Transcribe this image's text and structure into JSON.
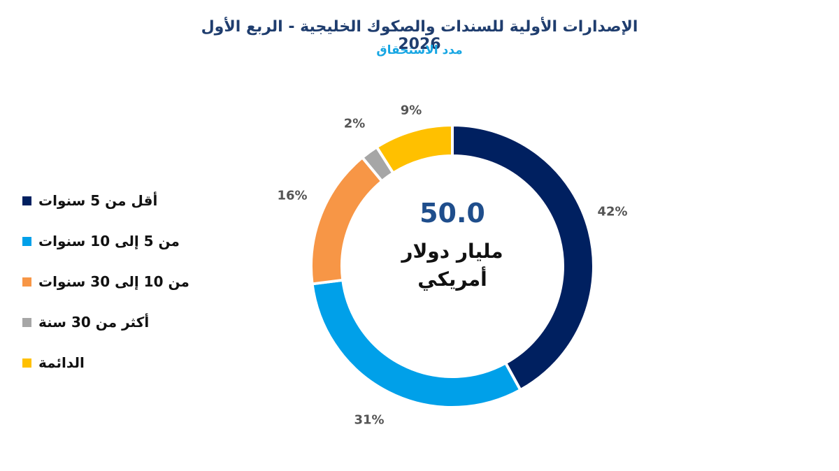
{
  "header": {
    "title": "الإصدارات الأولية للسندات والصكوك الخليجية -  الربع الأول 2026",
    "subtitle": "مدد الاستحقاق"
  },
  "center": {
    "value": "50.0",
    "unit_line1": "مليار دولار",
    "unit_line2": "أمريكي"
  },
  "colors": {
    "title": "#1f3d6e",
    "subtitle": "#17a6e3",
    "center_value": "#1f4e8c"
  },
  "chart_data": {
    "type": "pie",
    "variant": "donut",
    "title": "الإصدارات الأولية للسندات والصكوك الخليجية - الربع الأول 2026",
    "subtitle": "مدد الاستحقاق",
    "center_label": "50.0 مليار دولار أمريكي",
    "total": 50.0,
    "unit": "مليار دولار أمريكي",
    "legend_position": "left",
    "categories": [
      "أقل من 5 سنوات",
      "من 5 إلى 10 سنوات",
      "من 10 إلى 30 سنوات",
      "أكثر من 30 سنة",
      "الدائمة"
    ],
    "values": [
      42,
      31,
      16,
      2,
      9
    ],
    "labels": [
      "42%",
      "31%",
      "16%",
      "2%",
      "9%"
    ],
    "colors": [
      "#002060",
      "#00a0e9",
      "#f79646",
      "#a6a6a6",
      "#ffc000"
    ]
  },
  "legend": {
    "items": [
      {
        "label": "أقل من 5 سنوات",
        "color": "#002060"
      },
      {
        "label": "من 5 إلى 10 سنوات",
        "color": "#00a0e9"
      },
      {
        "label": "من 10 إلى 30 سنوات",
        "color": "#f79646"
      },
      {
        "label": "أكثر من 30 سنة",
        "color": "#a6a6a6"
      },
      {
        "label": "الدائمة",
        "color": "#ffc000"
      }
    ]
  },
  "slice_labels": [
    "42%",
    "31%",
    "16%",
    "2%",
    "9%"
  ]
}
